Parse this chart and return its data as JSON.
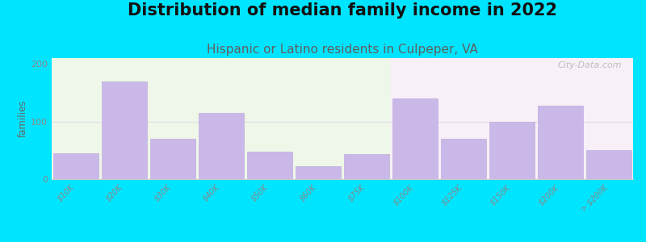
{
  "title": "Distribution of median family income in 2022",
  "subtitle": "Hispanic or Latino residents in Culpeper, VA",
  "ylabel": "families",
  "categories": [
    "$10K",
    "$20K",
    "$30K",
    "$40K",
    "$50K",
    "$60K",
    "$75K",
    "$100K",
    "$125K",
    "$150K",
    "$200K",
    "> $200K"
  ],
  "values": [
    45,
    170,
    70,
    115,
    47,
    22,
    43,
    140,
    70,
    100,
    128,
    50
  ],
  "bar_color": "#c9b8e8",
  "bar_edgecolor": "#c0aee0",
  "bg_outer": "#00e5ff",
  "bg_plot_left": "#eef7e8",
  "bg_plot_right": "#f7f0f8",
  "grid_color": "#e8e8e8",
  "ylim": [
    0,
    210
  ],
  "yticks": [
    0,
    100,
    200
  ],
  "title_fontsize": 15,
  "subtitle_fontsize": 11,
  "subtitle_color": "#606060",
  "watermark": "City-Data.com"
}
